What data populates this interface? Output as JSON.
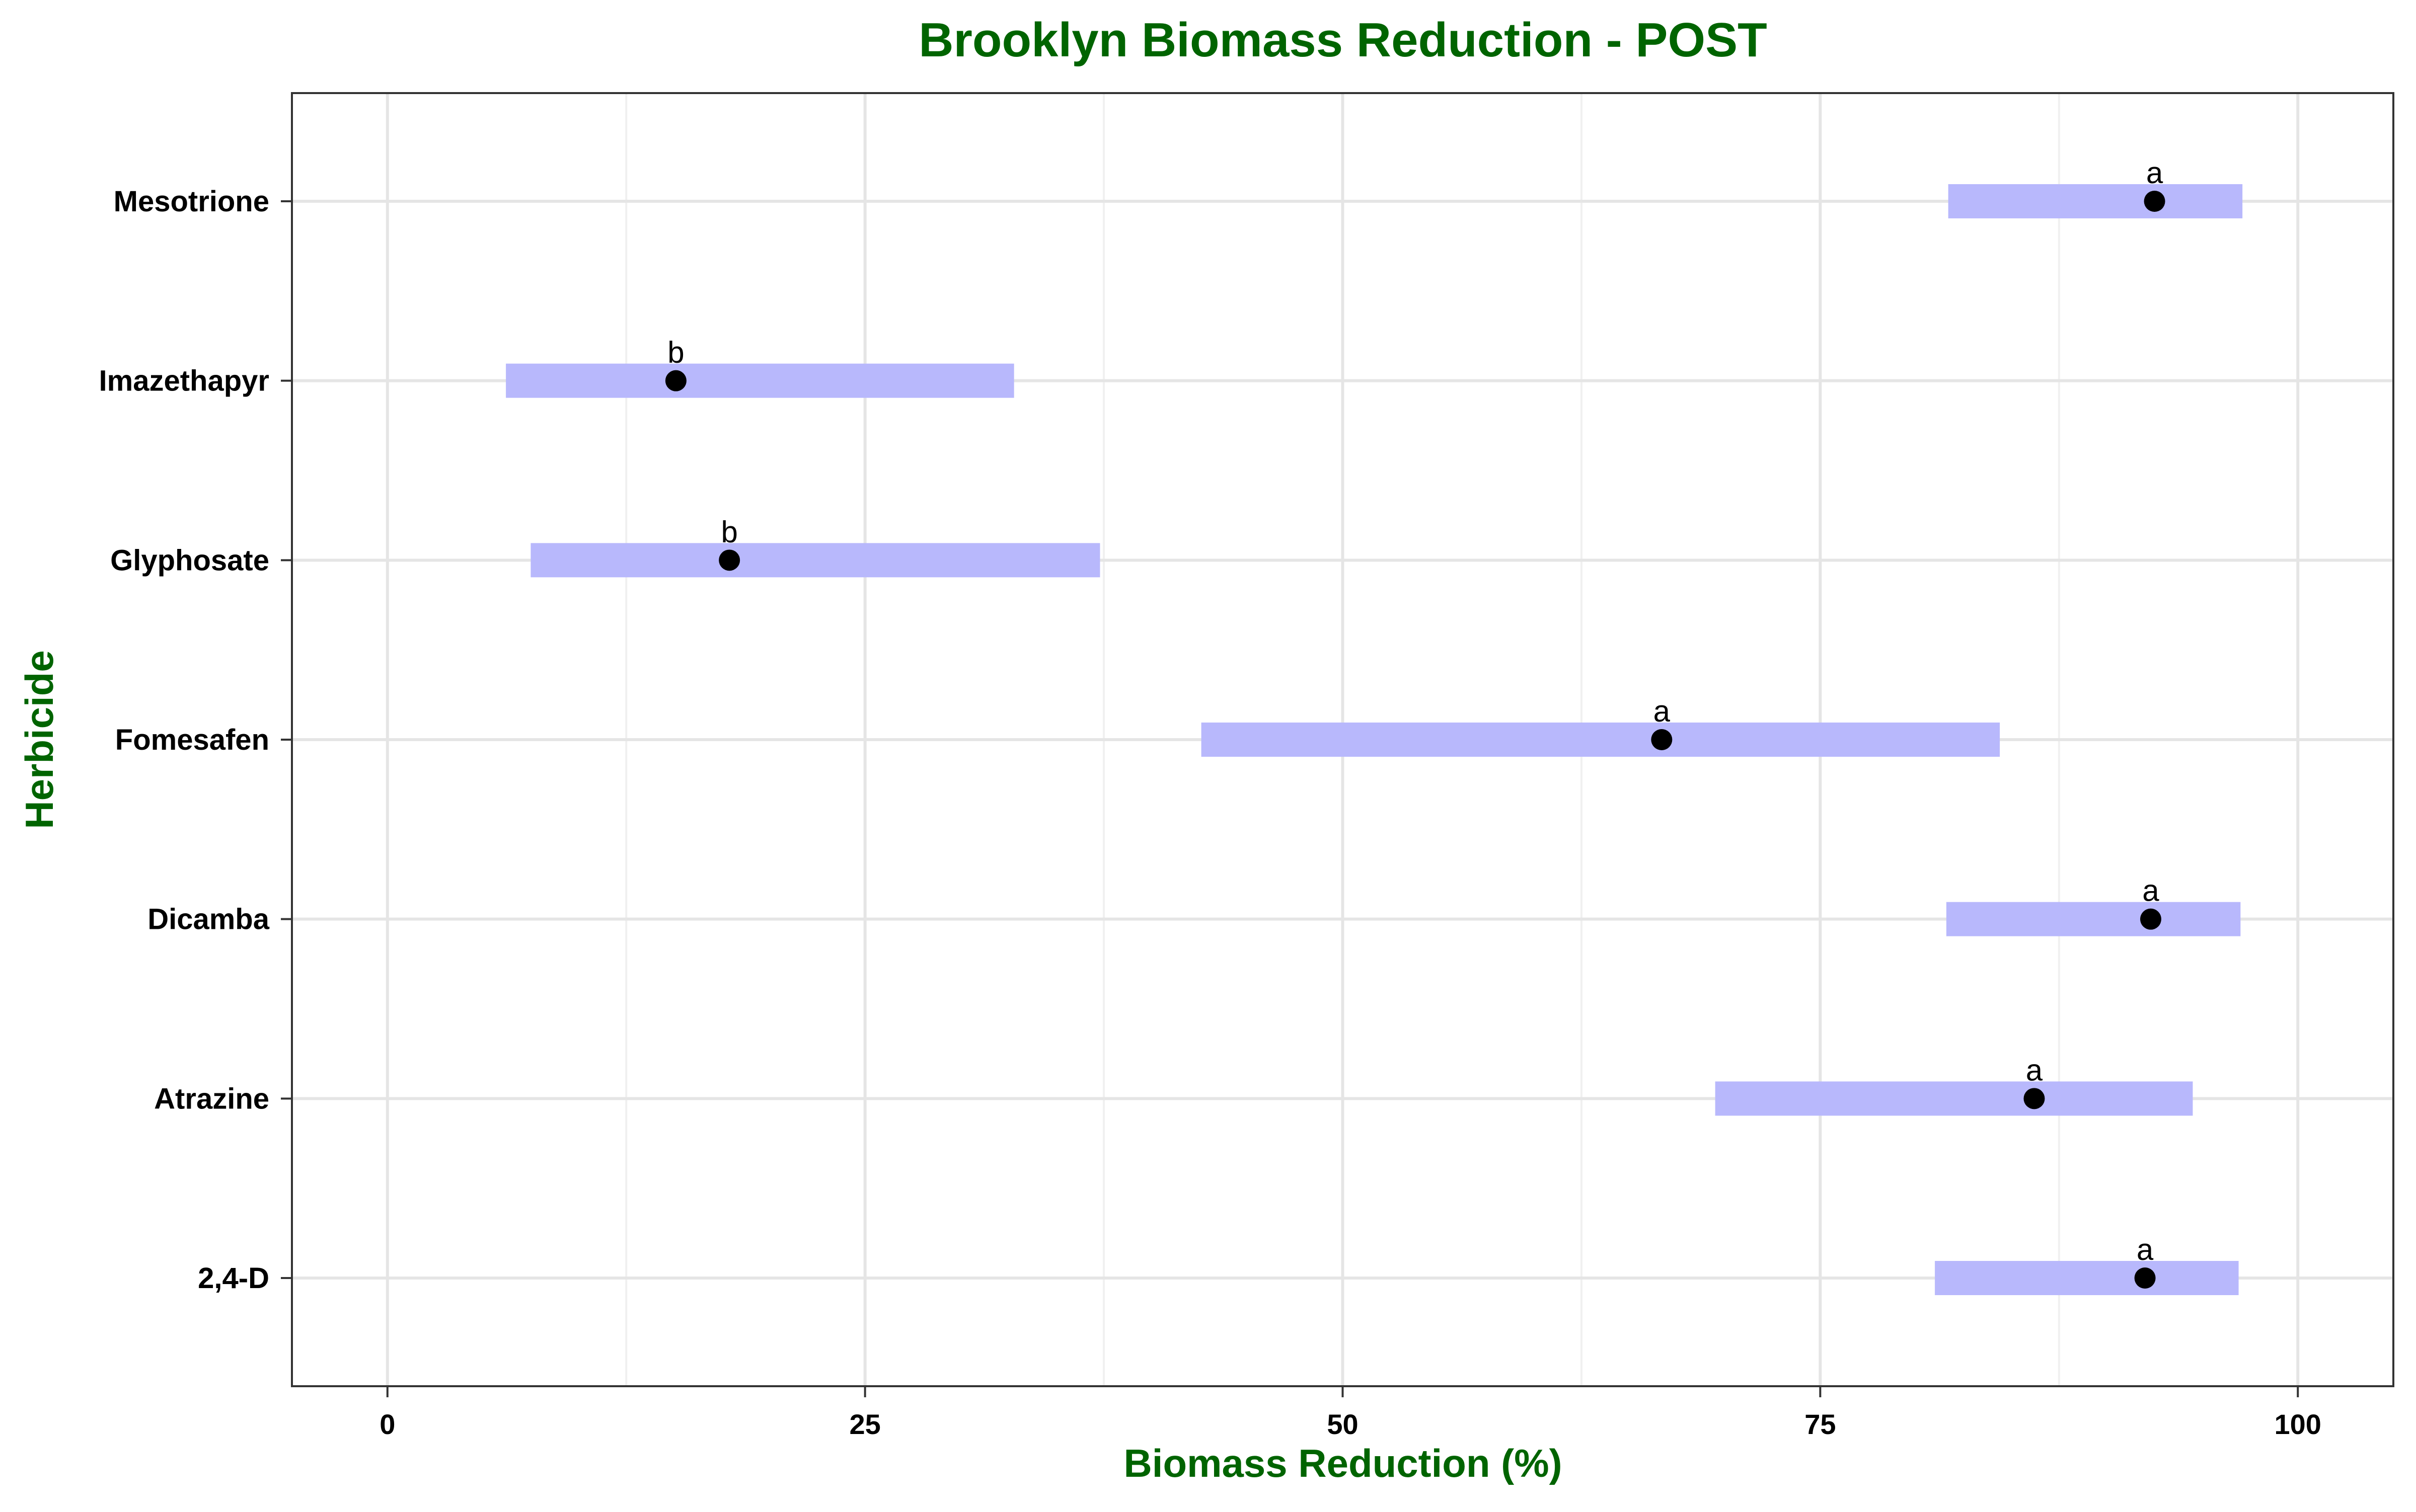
{
  "chart_data": {
    "type": "dot-interval",
    "title": "Brooklyn Biomass Reduction - POST",
    "xlabel": "Biomass Reduction (%)",
    "ylabel": "Herbicide",
    "xlim": [
      -5,
      105
    ],
    "x_ticks": [
      0,
      25,
      50,
      75,
      100
    ],
    "x_tick_labels": [
      "0",
      "25",
      "50",
      "75",
      "100"
    ],
    "grid": true,
    "colors": {
      "title": "#006400",
      "interval": "#b8b8fc",
      "point": "#000000",
      "grid_major": "#e5e5e5",
      "grid_minor": "#f0f0f0",
      "panel_border": "#333333"
    },
    "categories": [
      "2,4-D",
      "Atrazine",
      "Dicamba",
      "Fomesafen",
      "Glyphosate",
      "Imazethapyr",
      "Mesotrione"
    ],
    "estimates": [
      92,
      86.2,
      92.3,
      66.7,
      17.9,
      15.1,
      92.5
    ],
    "lower": [
      81,
      69.5,
      81.6,
      42.6,
      7.5,
      6.2,
      81.7
    ],
    "upper": [
      96.9,
      94.5,
      97,
      84.4,
      37.3,
      32.8,
      97.1
    ],
    "letters": [
      "a",
      "a",
      "a",
      "a",
      "b",
      "b",
      "a"
    ]
  }
}
